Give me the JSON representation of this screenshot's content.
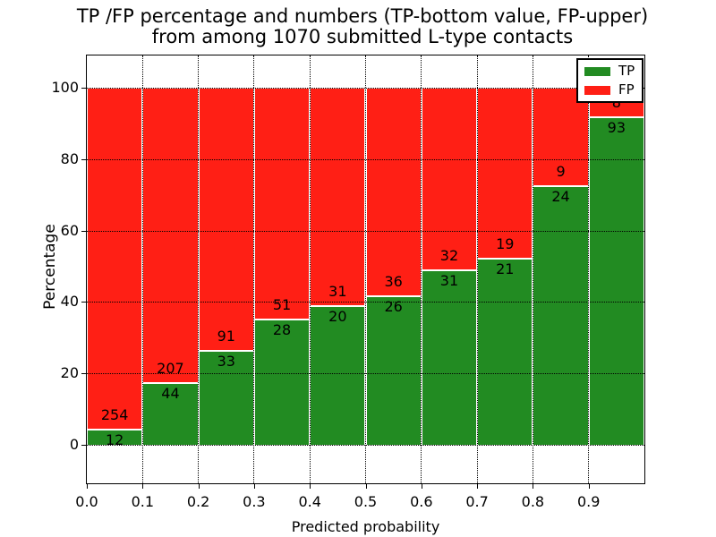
{
  "title": {
    "line1": "TP /FP percentage and numbers (TP-bottom value, FP-upper)",
    "line2": "from among 1070 submitted L-type contacts"
  },
  "axes": {
    "ylabel": "Percentage",
    "xlabel": "Predicted probability",
    "y_ticks": [
      0,
      20,
      40,
      60,
      80,
      100
    ],
    "x_ticks": [
      "0.0",
      "0.1",
      "0.2",
      "0.3",
      "0.4",
      "0.5",
      "0.6",
      "0.7",
      "0.8",
      "0.9"
    ]
  },
  "legend": [
    {
      "label": "TP",
      "color": "#228b22"
    },
    {
      "label": "FP",
      "color": "#ff1f15"
    }
  ],
  "colors": {
    "tp_green": "#228b22",
    "fp_red": "#ff1f15",
    "frame": "#000000",
    "background": "#ffffff"
  },
  "chart_data": {
    "type": "bar",
    "stacked": true,
    "normalized": "each bin scaled to 100%",
    "title": "TP /FP percentage and numbers (TP-bottom value, FP-upper) from among 1070 submitted L-type contacts",
    "xlabel": "Predicted probability",
    "ylabel": "Percentage",
    "xlim": [
      0.0,
      1.0
    ],
    "ylim": [
      -11,
      109
    ],
    "grid": true,
    "grid_style": "dotted",
    "legend_position": "upper right",
    "total_contacts": 1070,
    "bin_width": 0.1,
    "categories": [
      "0.0-0.1",
      "0.1-0.2",
      "0.2-0.3",
      "0.3-0.4",
      "0.4-0.5",
      "0.5-0.6",
      "0.6-0.7",
      "0.7-0.8",
      "0.8-0.9",
      "0.9-1.0"
    ],
    "series": [
      {
        "name": "TP",
        "color": "#228b22",
        "counts": [
          12,
          44,
          33,
          28,
          20,
          26,
          31,
          21,
          24,
          93
        ]
      },
      {
        "name": "FP",
        "color": "#ff1f15",
        "counts": [
          254,
          207,
          91,
          51,
          31,
          36,
          32,
          19,
          9,
          8
        ]
      }
    ],
    "tp_percent_of_bin": [
      4.5,
      17.5,
      26.6,
      35.4,
      39.2,
      41.9,
      49.2,
      52.5,
      72.7,
      92.1
    ]
  }
}
